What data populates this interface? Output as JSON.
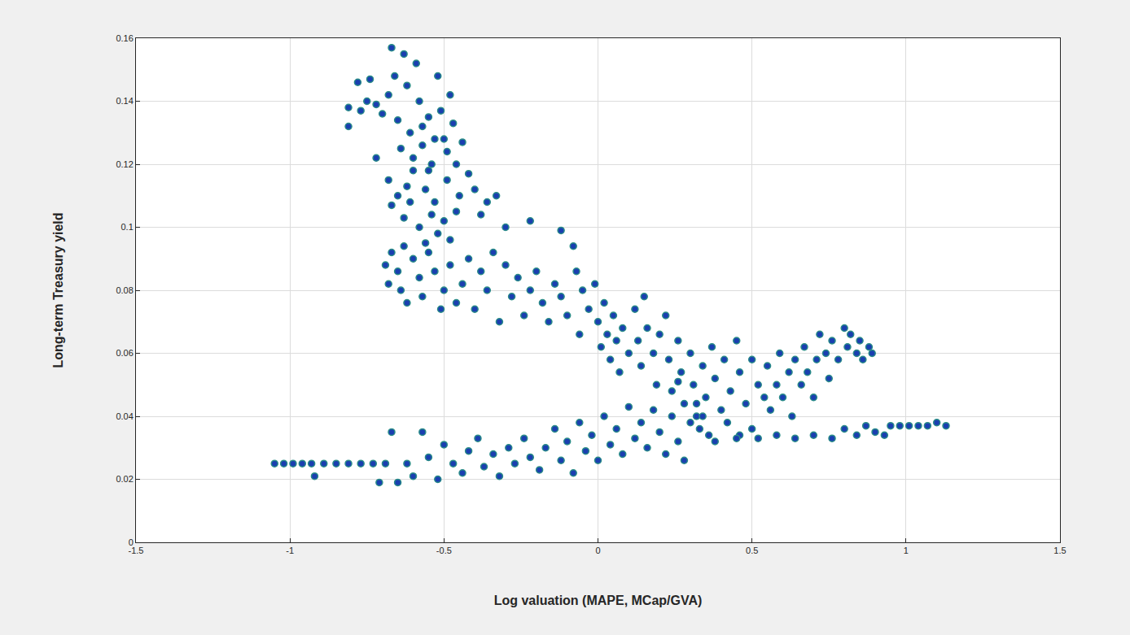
{
  "chart_data": {
    "type": "scatter",
    "xlabel": "Log valuation (MAPE, MCap/GVA)",
    "ylabel": "Long-term Treasury yield",
    "color": "#1a3fb0",
    "marker": "circle",
    "grid": true,
    "xlim": [
      -1.5,
      1.5
    ],
    "ylim": [
      0,
      0.16
    ],
    "xticks": [
      -1.5,
      -1,
      -0.5,
      0,
      0.5,
      1,
      1.5
    ],
    "yticks": [
      0,
      0.02,
      0.04,
      0.06,
      0.08,
      0.1,
      0.12,
      0.14,
      0.16
    ],
    "x": [
      -0.81,
      -0.81,
      -0.78,
      -0.77,
      -0.75,
      -0.74,
      -0.72,
      -0.72,
      -0.7,
      -0.68,
      -0.67,
      -0.66,
      -0.65,
      -0.64,
      -0.63,
      -0.62,
      -0.61,
      -0.6,
      -0.59,
      -0.58,
      -0.57,
      -0.56,
      -0.55,
      -0.54,
      -0.53,
      -0.52,
      -0.51,
      -0.5,
      -0.49,
      -0.48,
      -0.47,
      -0.46,
      -0.45,
      -0.44,
      -0.42,
      -0.4,
      -0.38,
      -0.36,
      -0.33,
      -0.3,
      -0.68,
      -0.67,
      -0.65,
      -0.63,
      -0.61,
      -0.58,
      -0.56,
      -0.54,
      -0.52,
      -0.5,
      -0.48,
      -0.46,
      -0.6,
      -0.57,
      -0.55,
      -0.53,
      -0.49,
      -0.62,
      -0.22,
      -0.12,
      -0.69,
      -0.68,
      -0.67,
      -0.65,
      -0.64,
      -0.63,
      -0.62,
      -0.6,
      -0.58,
      -0.57,
      -0.55,
      -0.53,
      -0.51,
      -0.5,
      -0.48,
      -0.46,
      -0.44,
      -0.42,
      -0.4,
      -0.38,
      -0.36,
      -0.34,
      -0.32,
      -0.3,
      -0.28,
      -0.26,
      -0.24,
      -0.22,
      -0.2,
      -0.18,
      -0.16,
      -0.14,
      -0.12,
      -0.1,
      -0.08,
      -0.07,
      -0.06,
      -0.05,
      -0.03,
      -0.01,
      0.0,
      0.01,
      0.02,
      0.03,
      0.04,
      0.05,
      0.06,
      0.07,
      0.08,
      0.1,
      0.12,
      0.13,
      0.14,
      0.15,
      0.16,
      0.18,
      0.19,
      0.2,
      0.22,
      0.23,
      0.24,
      0.26,
      0.27,
      0.28,
      0.3,
      0.31,
      0.32,
      0.34,
      0.35,
      0.37,
      0.38,
      0.4,
      0.41,
      0.43,
      0.45,
      0.46,
      0.48,
      0.5,
      0.52,
      0.54,
      0.55,
      0.56,
      0.58,
      0.59,
      0.6,
      0.62,
      0.63,
      0.64,
      0.66,
      0.67,
      0.68,
      0.7,
      0.71,
      0.72,
      0.74,
      0.75,
      0.76,
      0.78,
      0.8,
      0.81,
      0.82,
      0.84,
      0.85,
      0.86,
      0.88,
      0.89,
      0.42,
      0.46,
      0.5,
      0.36,
      -1.05,
      -1.02,
      -0.99,
      -0.96,
      -0.93,
      -0.92,
      -0.89,
      -0.85,
      -0.81,
      -0.77,
      -0.73,
      -0.71,
      -0.69,
      -0.67,
      -0.65,
      -0.62,
      -0.6,
      -0.57,
      -0.55,
      -0.52,
      -0.5,
      -0.47,
      -0.44,
      -0.42,
      -0.39,
      -0.37,
      -0.34,
      -0.32,
      -0.29,
      -0.27,
      -0.24,
      -0.22,
      -0.19,
      -0.17,
      -0.14,
      -0.12,
      -0.1,
      -0.08,
      -0.06,
      -0.04,
      -0.02,
      0.0,
      0.02,
      0.04,
      0.06,
      0.08,
      0.1,
      0.12,
      0.14,
      0.16,
      0.18,
      0.2,
      0.22,
      0.24,
      0.26,
      0.28,
      0.3,
      0.32,
      0.34,
      0.38,
      0.45,
      0.52,
      0.58,
      0.64,
      0.7,
      0.76,
      0.8,
      0.84,
      0.87,
      0.9,
      0.93,
      0.95,
      0.98,
      1.01,
      1.04,
      1.07,
      1.1,
      1.13,
      0.26,
      0.33
    ],
    "y": [
      0.138,
      0.132,
      0.146,
      0.137,
      0.14,
      0.147,
      0.139,
      0.122,
      0.136,
      0.142,
      0.157,
      0.148,
      0.134,
      0.125,
      0.155,
      0.145,
      0.13,
      0.118,
      0.152,
      0.14,
      0.126,
      0.112,
      0.135,
      0.12,
      0.108,
      0.148,
      0.137,
      0.128,
      0.115,
      0.142,
      0.133,
      0.12,
      0.11,
      0.127,
      0.117,
      0.112,
      0.104,
      0.108,
      0.11,
      0.1,
      0.115,
      0.107,
      0.11,
      0.103,
      0.108,
      0.1,
      0.095,
      0.104,
      0.098,
      0.102,
      0.096,
      0.105,
      0.122,
      0.132,
      0.118,
      0.128,
      0.124,
      0.113,
      0.102,
      0.099,
      0.088,
      0.082,
      0.092,
      0.086,
      0.08,
      0.094,
      0.076,
      0.09,
      0.084,
      0.078,
      0.092,
      0.086,
      0.074,
      0.08,
      0.088,
      0.076,
      0.082,
      0.09,
      0.074,
      0.086,
      0.08,
      0.092,
      0.07,
      0.088,
      0.078,
      0.084,
      0.072,
      0.08,
      0.086,
      0.076,
      0.07,
      0.082,
      0.078,
      0.072,
      0.094,
      0.086,
      0.066,
      0.08,
      0.074,
      0.082,
      0.07,
      0.062,
      0.076,
      0.066,
      0.058,
      0.072,
      0.064,
      0.054,
      0.068,
      0.06,
      0.074,
      0.064,
      0.056,
      0.078,
      0.068,
      0.06,
      0.05,
      0.066,
      0.072,
      0.058,
      0.048,
      0.064,
      0.054,
      0.044,
      0.06,
      0.05,
      0.04,
      0.056,
      0.046,
      0.062,
      0.052,
      0.042,
      0.058,
      0.048,
      0.064,
      0.054,
      0.044,
      0.058,
      0.05,
      0.046,
      0.056,
      0.042,
      0.05,
      0.06,
      0.046,
      0.054,
      0.04,
      0.058,
      0.05,
      0.062,
      0.054,
      0.046,
      0.058,
      0.066,
      0.06,
      0.052,
      0.064,
      0.058,
      0.068,
      0.062,
      0.066,
      0.06,
      0.064,
      0.058,
      0.062,
      0.06,
      0.038,
      0.034,
      0.036,
      0.034,
      0.025,
      0.025,
      0.025,
      0.025,
      0.025,
      0.021,
      0.025,
      0.025,
      0.025,
      0.025,
      0.025,
      0.019,
      0.025,
      0.035,
      0.019,
      0.025,
      0.021,
      0.035,
      0.027,
      0.02,
      0.031,
      0.025,
      0.022,
      0.029,
      0.033,
      0.024,
      0.028,
      0.021,
      0.03,
      0.025,
      0.033,
      0.027,
      0.023,
      0.03,
      0.036,
      0.026,
      0.032,
      0.022,
      0.038,
      0.029,
      0.034,
      0.026,
      0.04,
      0.031,
      0.036,
      0.028,
      0.043,
      0.033,
      0.038,
      0.03,
      0.042,
      0.035,
      0.028,
      0.04,
      0.032,
      0.026,
      0.038,
      0.044,
      0.04,
      0.032,
      0.033,
      0.033,
      0.034,
      0.033,
      0.034,
      0.033,
      0.036,
      0.034,
      0.037,
      0.035,
      0.034,
      0.037,
      0.037,
      0.037,
      0.037,
      0.037,
      0.038,
      0.037,
      0.051,
      0.036
    ]
  }
}
